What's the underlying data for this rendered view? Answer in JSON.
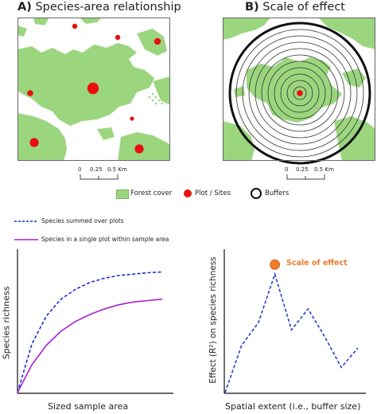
{
  "panel_a": {
    "letter": "A)",
    "title": "Species-area relationship"
  },
  "panel_b": {
    "letter": "B)",
    "title": "Scale of effect"
  },
  "scale_bar": {
    "ticks": [
      "0",
      "0.25",
      "0.5 Km"
    ]
  },
  "legend_map": {
    "forest": "Forest cover",
    "plots": "Plot / Sites",
    "buffers": "Buffers"
  },
  "legend_curves": {
    "summed": "Species summed over plots",
    "single": "Species in a single plot within sample area"
  },
  "chart_c": {
    "xlabel": "Sized sample area",
    "ylabel": "Species richness"
  },
  "chart_d": {
    "xlabel": "Spatial extent (i.e., buffer size)",
    "ylabel": "Effect (R²) on species richness",
    "annotation": "Scale of effect"
  },
  "colors": {
    "forest": "#9bd67f",
    "plot": "#e81010",
    "summed_line": "#1b2bd6",
    "single_line": "#a51fd4",
    "effect_line": "#2840c8",
    "effect_point": "#f07b2b"
  },
  "chart_data": [
    {
      "type": "line",
      "series": [
        {
          "name": "Species summed over plots",
          "style": "dashed",
          "x": [
            0,
            1,
            2,
            3,
            4,
            5,
            6,
            7,
            8,
            9,
            10
          ],
          "y": [
            0,
            0.35,
            0.55,
            0.67,
            0.74,
            0.79,
            0.82,
            0.84,
            0.85,
            0.86,
            0.865
          ]
        },
        {
          "name": "Species in a single plot within sample area",
          "style": "solid",
          "x": [
            0,
            1,
            2,
            3,
            4,
            5,
            6,
            7,
            8,
            9,
            10
          ],
          "y": [
            0,
            0.2,
            0.34,
            0.44,
            0.51,
            0.56,
            0.6,
            0.63,
            0.65,
            0.66,
            0.67
          ]
        }
      ],
      "xlabel": "Sized sample area",
      "ylabel": "Species richness"
    },
    {
      "type": "line",
      "series": [
        {
          "name": "Effect",
          "style": "dashed",
          "x": [
            0,
            1,
            2,
            3,
            4,
            5,
            6,
            7,
            8
          ],
          "y": [
            0,
            0.34,
            0.5,
            0.85,
            0.45,
            0.6,
            0.4,
            0.18,
            0.32
          ]
        }
      ],
      "peak_index": 3,
      "annotation": "Scale of effect",
      "xlabel": "Spatial extent (i.e., buffer size)",
      "ylabel": "Effect (R²) on species richness"
    }
  ]
}
